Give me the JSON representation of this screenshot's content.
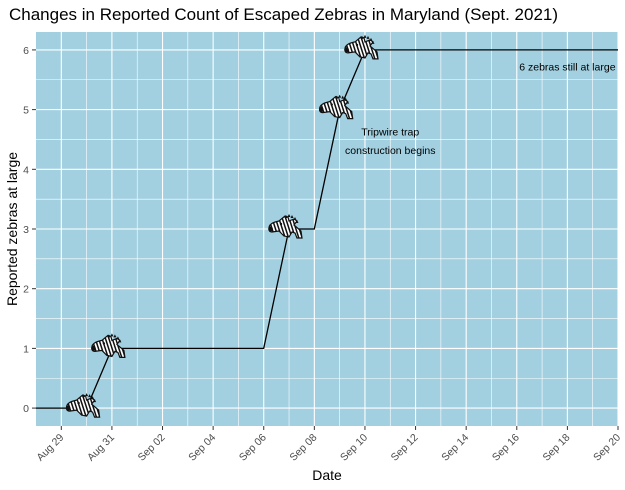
{
  "chart_data": {
    "type": "line",
    "title": "Changes in Reported Count of Escaped Zebras in Maryland (Sept. 2021)",
    "xlabel": "Date",
    "ylabel": "Reported zebras at large",
    "xlim": [
      "2021-08-28",
      "2021-09-20"
    ],
    "ylim": [
      -0.3,
      6.3
    ],
    "x_ticks": [
      "2021-08-29",
      "2021-08-31",
      "2021-09-02",
      "2021-09-04",
      "2021-09-06",
      "2021-09-08",
      "2021-09-10",
      "2021-09-12",
      "2021-09-14",
      "2021-09-16",
      "2021-09-18",
      "2021-09-20"
    ],
    "x_tick_labels": [
      "Aug 29",
      "Aug 31",
      "Sep 02",
      "Sep 04",
      "Sep 06",
      "Sep 08",
      "Sep 10",
      "Sep 12",
      "Sep 14",
      "Sep 16",
      "Sep 18",
      "Sep 20"
    ],
    "y_ticks": [
      0,
      1,
      2,
      3,
      4,
      5,
      6
    ],
    "y_tick_labels": [
      "0",
      "1",
      "2",
      "3",
      "4",
      "5",
      "6"
    ],
    "grid": true,
    "background": "#a2d0e0",
    "grid_color": "#ffffff",
    "line_color": "#000000",
    "series": [
      {
        "x": [
          "2021-08-28",
          "2021-08-30",
          "2021-08-31",
          "2021-09-06",
          "2021-09-07",
          "2021-09-08",
          "2021-09-09",
          "2021-09-10",
          "2021-09-20"
        ],
        "y": [
          0,
          0,
          1,
          1,
          3,
          3,
          5,
          6,
          6
        ]
      }
    ],
    "markers": {
      "icon": "zebra-head-icon",
      "points": [
        {
          "x": "2021-08-30",
          "y": 0
        },
        {
          "x": "2021-08-31",
          "y": 1
        },
        {
          "x": "2021-09-07",
          "y": 3
        },
        {
          "x": "2021-09-09",
          "y": 5
        },
        {
          "x": "2021-09-10",
          "y": 6
        }
      ]
    },
    "annotations": [
      {
        "text": "6 zebras still at large",
        "x": "2021-09-18",
        "y": 5.72
      },
      {
        "text": "Tripwire trap",
        "x": "2021-09-11",
        "y": 4.63
      },
      {
        "text": "construction begins",
        "x": "2021-09-11",
        "y": 4.32
      }
    ]
  }
}
